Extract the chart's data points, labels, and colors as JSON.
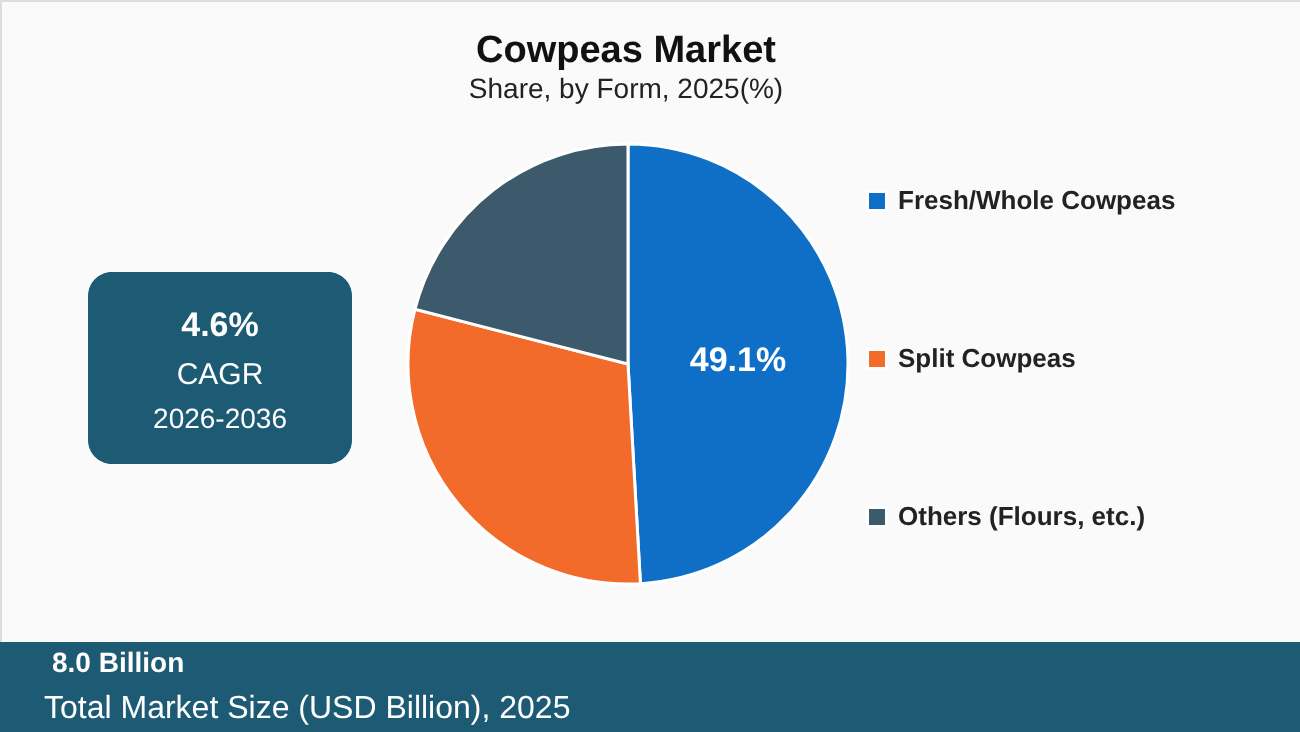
{
  "chart_data": {
    "type": "pie",
    "title": "Cowpeas Market",
    "subtitle": "Share, by Form, 2025(%)",
    "categories": [
      "Fresh/Whole Cowpeas",
      "Split Cowpeas",
      "Others (Flours, etc.)"
    ],
    "values": [
      49.1,
      29.9,
      21.0
    ],
    "colors": [
      "#0f6fc6",
      "#f26b2a",
      "#3d5a6c"
    ],
    "value_labels": [
      "49.1%",
      null,
      null
    ],
    "legend": "right",
    "annotations": [
      "4.6%",
      "CAGR",
      "2026-2036",
      "8.0 Billion",
      "Total Market Size (USD Billion), 2025"
    ]
  }
}
